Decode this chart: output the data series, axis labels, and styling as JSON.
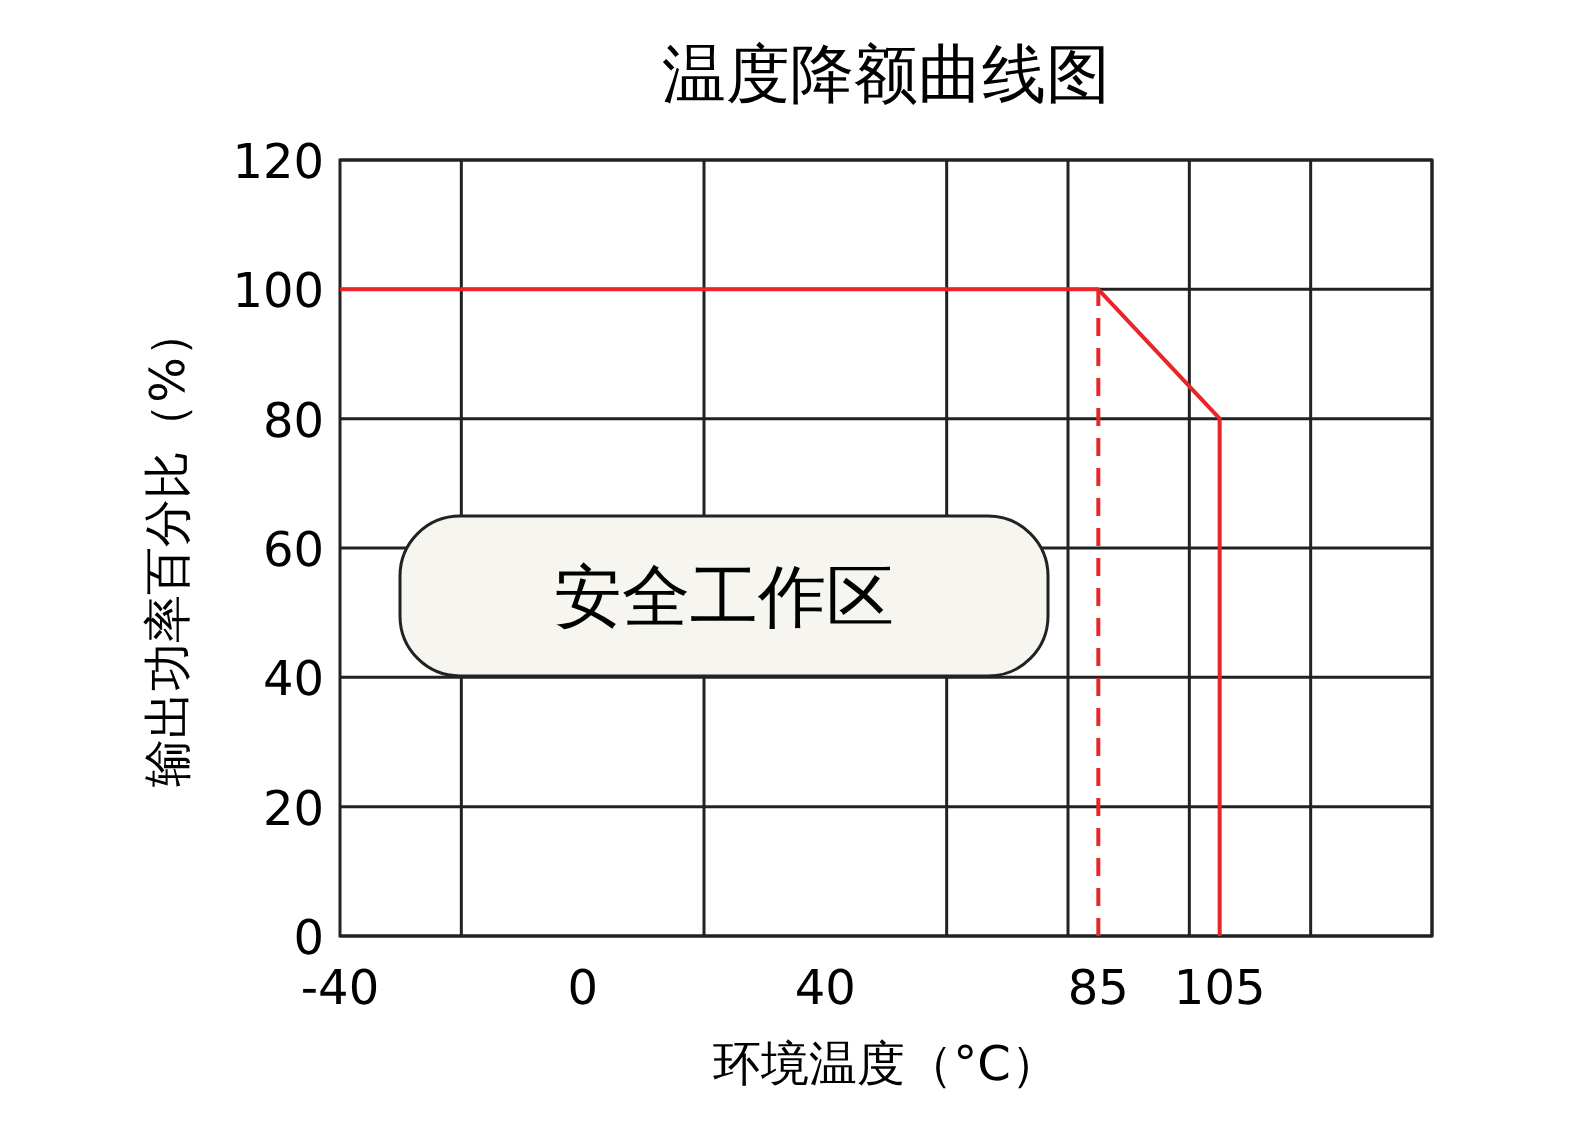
{
  "chart_data": {
    "type": "line",
    "title": "温度降额曲线图",
    "xlabel": "环境温度（°C）",
    "ylabel": "输出功率百分比（%）",
    "annotations": [
      "安全工作区"
    ],
    "series": [
      {
        "color": "#e8262a",
        "x": [
          -40,
          85,
          105,
          105
        ],
        "values": [
          100,
          100,
          80,
          0
        ]
      },
      {
        "color": "#e8262a",
        "x": [
          85,
          85
        ],
        "values": [
          0,
          100
        ],
        "line_style": "dashed"
      }
    ],
    "xlim": [
      -40,
      140
    ],
    "xticks": [
      -40,
      {
        "value": -20,
        "label": null
      },
      0,
      {
        "value": 20,
        "label": null
      },
      40,
      {
        "value": 60,
        "label": null
      },
      {
        "value": 80,
        "label": null
      },
      85,
      {
        "value": 100,
        "label": null
      },
      105,
      {
        "value": 120,
        "label": null
      },
      {
        "value": 140,
        "label": null
      }
    ],
    "ylim": [
      0,
      120
    ],
    "yticks": [
      0,
      20,
      40,
      60,
      80,
      100,
      120
    ],
    "grid": true,
    "marker": "none",
    "line_style": "solid"
  }
}
